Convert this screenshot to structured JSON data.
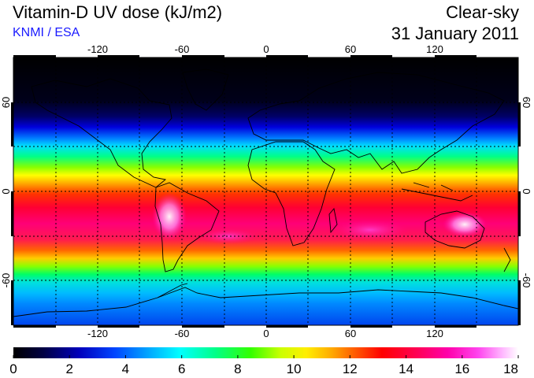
{
  "header": {
    "title": "Vitamin-D UV dose (kJ/m2)",
    "source": "KNMI / ESA",
    "condition": "Clear-sky",
    "date": "31 January 2011"
  },
  "map": {
    "longitude_ticks": [
      "-120",
      "-60",
      "0",
      "60",
      "120"
    ],
    "latitude_ticks_left": [
      "60",
      "0",
      "-60"
    ],
    "latitude_ticks_right": [
      "60",
      "0",
      "-60"
    ]
  },
  "colorbar": {
    "ticks": [
      "0",
      "2",
      "4",
      "6",
      "8",
      "10",
      "12",
      "14",
      "16",
      "18"
    ],
    "min": 0,
    "max": 18,
    "colors": [
      "#000000",
      "#000044",
      "#0000cc",
      "#0055ff",
      "#00ccff",
      "#00ffcc",
      "#00ff44",
      "#66ff00",
      "#ccff00",
      "#ffee00",
      "#ffaa00",
      "#ff5500",
      "#ff0000",
      "#ff0055",
      "#ff00aa",
      "#ff33dd",
      "#ff99ff",
      "#ffffff"
    ]
  }
}
